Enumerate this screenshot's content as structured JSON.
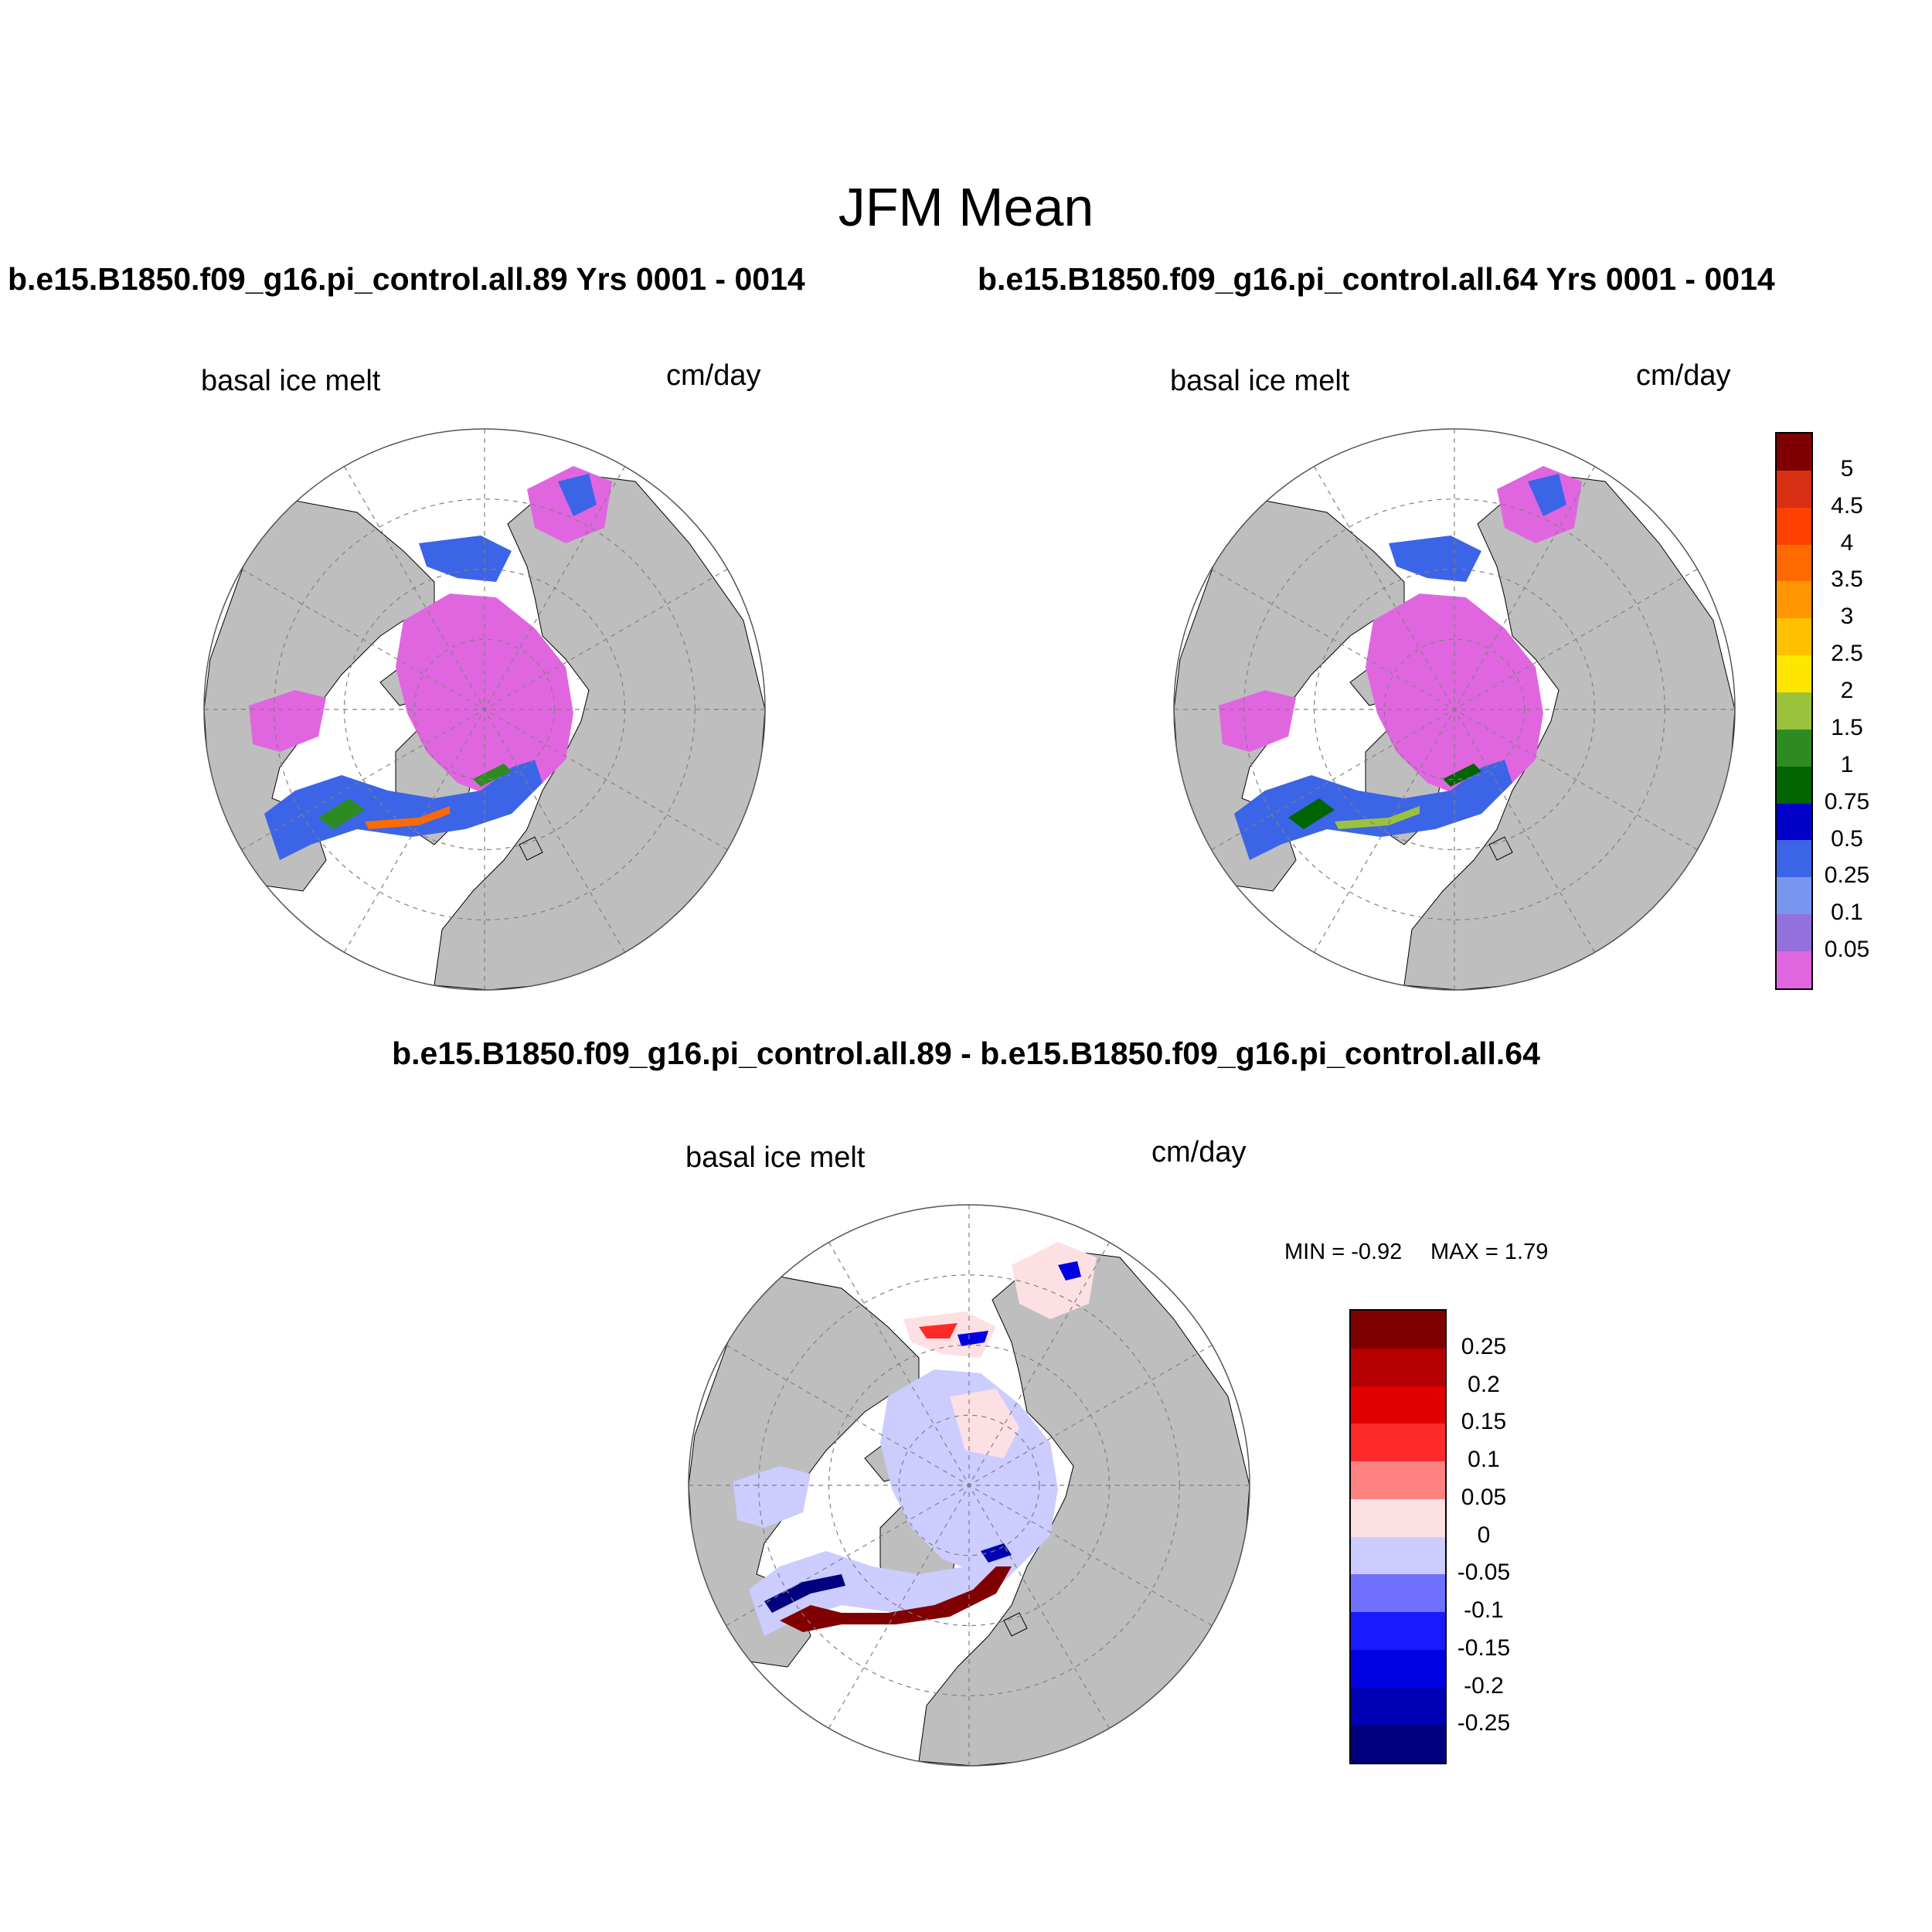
{
  "figure": {
    "title": "JFM Mean",
    "left_title": "b.e15.B1850.f09_g16.pi_control.all.89  Yrs 0001 - 0014",
    "right_title": "b.e15.B1850.f09_g16.pi_control.all.64  Yrs 0001 - 0014",
    "diff_title": "b.e15.B1850.f09_g16.pi_control.all.89 - b.e15.B1850.f09_g16.pi_control.all.64"
  },
  "panels": {
    "left": {
      "variable": "basal ice melt",
      "units": "cm/day"
    },
    "right": {
      "variable": "basal ice melt",
      "units": "cm/day"
    },
    "diff": {
      "variable": "basal ice melt",
      "units": "cm/day",
      "min_label": "MIN =  -0.92",
      "max_label": "MAX =   1.79"
    }
  },
  "chart_data": [
    {
      "type": "heatmap",
      "projection": "north polar stereographic",
      "title": "b.e15.B1850.f09_g16.pi_control.all.89  Yrs 0001 - 0014",
      "variable": "basal ice melt",
      "units": "cm/day"
    },
    {
      "type": "heatmap",
      "projection": "north polar stereographic",
      "title": "b.e15.B1850.f09_g16.pi_control.all.64  Yrs 0001 - 0014",
      "variable": "basal ice melt",
      "units": "cm/day"
    },
    {
      "type": "heatmap",
      "projection": "north polar stereographic",
      "title": "b.e15.B1850.f09_g16.pi_control.all.89 - b.e15.B1850.f09_g16.pi_control.all.64",
      "variable": "basal ice melt",
      "units": "cm/day",
      "min": -0.92,
      "max": 1.79
    }
  ],
  "colorbars": {
    "main": {
      "labels": [
        "5",
        "4.5",
        "4",
        "3.5",
        "3",
        "2.5",
        "2",
        "1.5",
        "1",
        "0.75",
        "0.5",
        "0.25",
        "0.1",
        "0.05"
      ],
      "colors": [
        "#7f0000",
        "#d72f14",
        "#ff4000",
        "#ff6a00",
        "#ff9500",
        "#ffc000",
        "#ffe600",
        "#9ac23c",
        "#2e8b22",
        "#006400",
        "#0000c8",
        "#3c64e6",
        "#7896f0",
        "#9370db",
        "#e066e0"
      ]
    },
    "diff": {
      "labels": [
        "0.25",
        "0.2",
        "0.15",
        "0.1",
        "0.05",
        "0",
        "-0.05",
        "-0.1",
        "-0.15",
        "-0.2",
        "-0.25"
      ],
      "colors": [
        "#800000",
        "#b40000",
        "#e00000",
        "#ff2a2a",
        "#ff8080",
        "#fce0e4",
        "#ccccff",
        "#7070ff",
        "#1a1aff",
        "#0000e0",
        "#0000b4",
        "#000080"
      ]
    }
  },
  "colors": {
    "land": "#bebebe",
    "ocean": "#ffffff",
    "grid": "#808080"
  }
}
